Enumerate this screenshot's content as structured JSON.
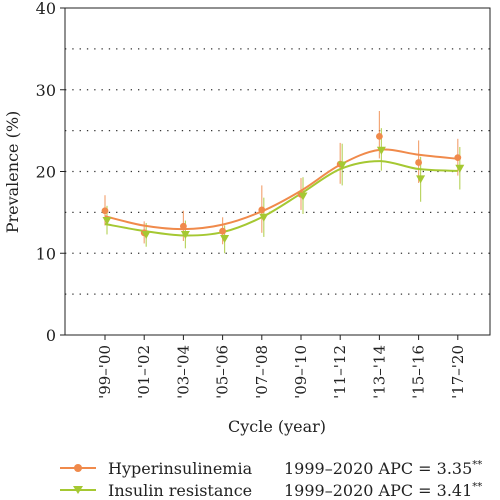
{
  "chart_data": {
    "type": "line",
    "ylabel": "Prevalence (%)",
    "xlabel": "Cycle (year)",
    "ylim": [
      0,
      40
    ],
    "yticks": [
      "0",
      "10",
      "20",
      "30",
      "40"
    ],
    "grid": "horizontal dotted",
    "legend_position": "bottom",
    "categories": [
      "'99–'00",
      "'01–'02",
      "'03–'04",
      "'05–'06",
      "'07–'08",
      "'09–'10",
      "'11–'12",
      "'13–'14",
      "'15–'16",
      "'17–'20"
    ],
    "series": [
      {
        "name": "Hyperinsulinemia",
        "color": "#F08A4B",
        "marker": "circle",
        "values": [
          15.2,
          12.5,
          13.3,
          12.7,
          15.3,
          17.2,
          20.9,
          24.3,
          21.1,
          21.7
        ],
        "ci_low": [
          13.4,
          11.2,
          11.5,
          11.1,
          12.5,
          15.3,
          18.5,
          21.6,
          18.6,
          19.5
        ],
        "ci_high": [
          17.1,
          13.9,
          15.2,
          14.4,
          18.3,
          19.2,
          23.5,
          27.4,
          23.8,
          24.0
        ],
        "apc_label": "1999–2020 APC = 3.35",
        "apc_sig": "**"
      },
      {
        "name": "Insulin resistance",
        "color": "#A5C832",
        "marker": "triangle-down",
        "values": [
          14.0,
          12.3,
          12.3,
          11.8,
          14.4,
          17.0,
          20.8,
          22.6,
          19.1,
          20.4
        ],
        "ci_low": [
          12.3,
          10.8,
          10.6,
          10.0,
          12.0,
          14.8,
          18.3,
          20.1,
          16.3,
          17.8
        ],
        "ci_high": [
          15.8,
          13.7,
          14.0,
          13.4,
          16.8,
          19.3,
          23.4,
          25.3,
          21.8,
          23.0
        ],
        "apc_label": "1999–2020 APC = 3.41",
        "apc_sig": "**"
      }
    ]
  }
}
